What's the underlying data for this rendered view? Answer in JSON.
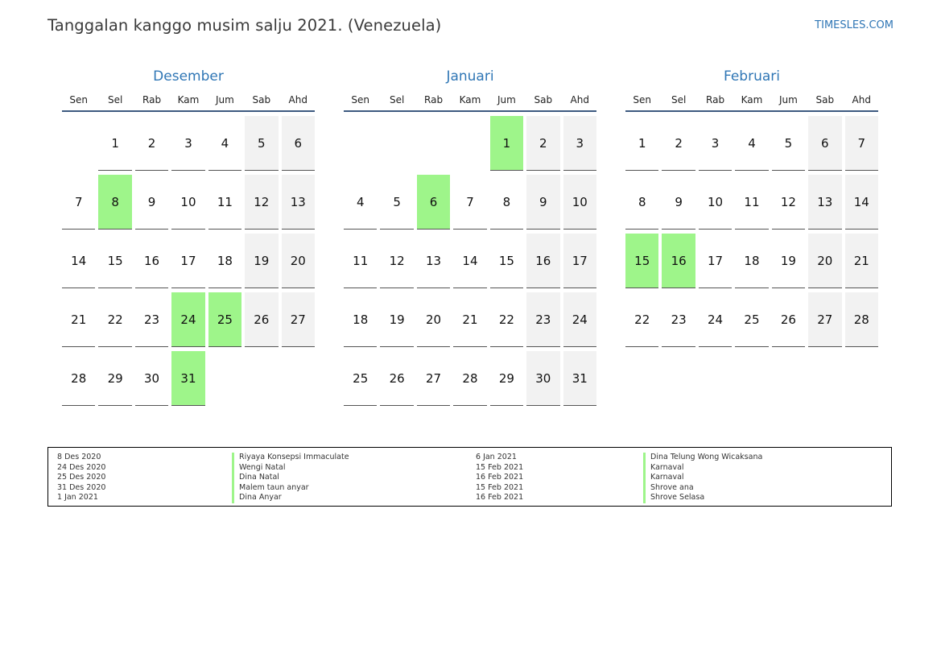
{
  "header": {
    "title": "Tanggalan kanggo musim salju 2021. (Venezuela)",
    "site": "TIMESLES.COM"
  },
  "weekdays": [
    "Sen",
    "Sel",
    "Rab",
    "Kam",
    "Jum",
    "Sab",
    "Ahd"
  ],
  "months": [
    {
      "name": "Desember",
      "weeks": [
        [
          "",
          "1",
          "2",
          "3",
          "4",
          "5",
          "6"
        ],
        [
          "7",
          "8",
          "9",
          "10",
          "11",
          "12",
          "13"
        ],
        [
          "14",
          "15",
          "16",
          "17",
          "18",
          "19",
          "20"
        ],
        [
          "21",
          "22",
          "23",
          "24",
          "25",
          "26",
          "27"
        ],
        [
          "28",
          "29",
          "30",
          "31",
          "",
          "",
          ""
        ]
      ],
      "holidays": [
        "8",
        "24",
        "25",
        "31"
      ]
    },
    {
      "name": "Januari",
      "weeks": [
        [
          "",
          "",
          "",
          "",
          "1",
          "2",
          "3"
        ],
        [
          "4",
          "5",
          "6",
          "7",
          "8",
          "9",
          "10"
        ],
        [
          "11",
          "12",
          "13",
          "14",
          "15",
          "16",
          "17"
        ],
        [
          "18",
          "19",
          "20",
          "21",
          "22",
          "23",
          "24"
        ],
        [
          "25",
          "26",
          "27",
          "28",
          "29",
          "30",
          "31"
        ]
      ],
      "holidays": [
        "1",
        "6"
      ]
    },
    {
      "name": "Februari",
      "weeks": [
        [
          "1",
          "2",
          "3",
          "4",
          "5",
          "6",
          "7"
        ],
        [
          "8",
          "9",
          "10",
          "11",
          "12",
          "13",
          "14"
        ],
        [
          "15",
          "16",
          "17",
          "18",
          "19",
          "20",
          "21"
        ],
        [
          "22",
          "23",
          "24",
          "25",
          "26",
          "27",
          "28"
        ]
      ],
      "holidays": [
        "15",
        "16"
      ]
    }
  ],
  "legend": {
    "left": {
      "dates": [
        "8 Des 2020",
        "24 Des 2020",
        "25 Des 2020",
        "31 Des 2020",
        "1 Jan 2021"
      ],
      "names": [
        "Riyaya Konsepsi Immaculate",
        "Wengi Natal",
        "Dina Natal",
        "Malem taun anyar",
        "Dina Anyar"
      ]
    },
    "right": {
      "dates": [
        "6 Jan 2021",
        "15 Feb 2021",
        "16 Feb 2021",
        "15 Feb 2021",
        "16 Feb 2021"
      ],
      "names": [
        "Dina Telung Wong Wicaksana",
        "Karnaval",
        "Karnaval",
        "Shrove ana",
        "Shrove Selasa"
      ]
    }
  },
  "colors": {
    "holiday": "#9ef58a",
    "weekend": "#f2f2f2",
    "accent": "#2f76b5",
    "rule": "#3d5a80"
  }
}
